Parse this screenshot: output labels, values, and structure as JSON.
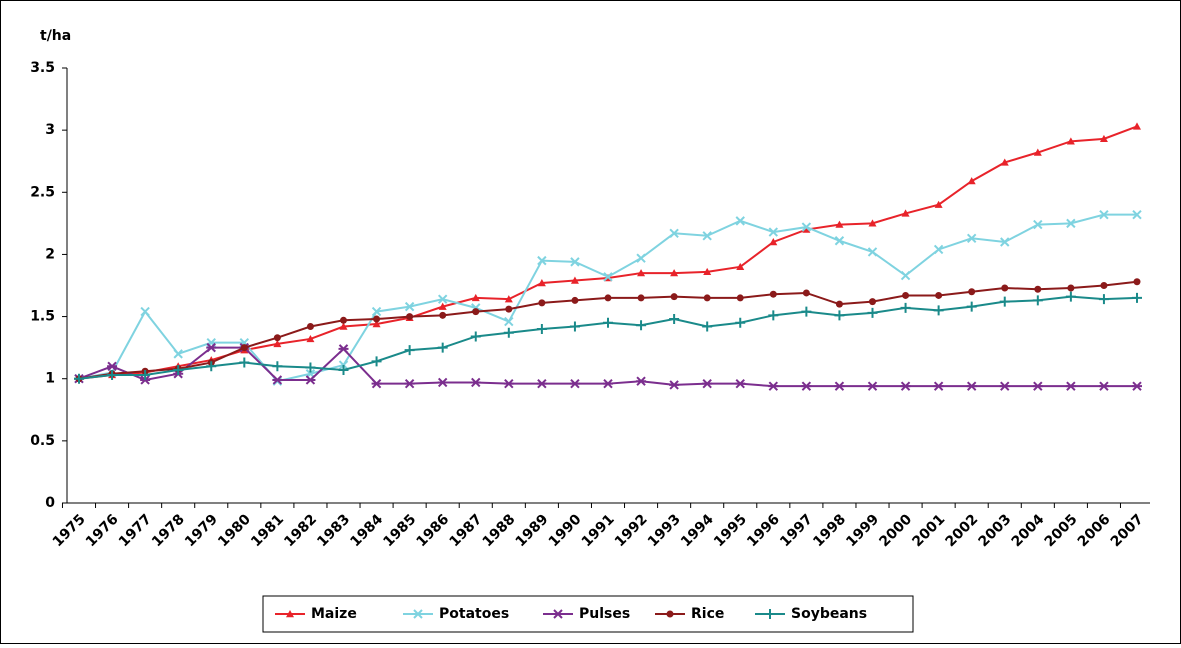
{
  "chart_data": {
    "type": "line",
    "y_label": "t/ha",
    "categories": [
      "1975",
      "1976",
      "1977",
      "1978",
      "1979",
      "1980",
      "1981",
      "1982",
      "1983",
      "1984",
      "1985",
      "1986",
      "1987",
      "1988",
      "1989",
      "1990",
      "1991",
      "1992",
      "1993",
      "1994",
      "1995",
      "1996",
      "1997",
      "1998",
      "1999",
      "2000",
      "2001",
      "2002",
      "2003",
      "2004",
      "2005",
      "2006",
      "2007"
    ],
    "series": [
      {
        "name": "Maize",
        "color": "#e8232a",
        "marker": "triangle",
        "values": [
          1.0,
          1.03,
          1.05,
          1.1,
          1.15,
          1.23,
          1.28,
          1.32,
          1.42,
          1.44,
          1.49,
          1.58,
          1.65,
          1.64,
          1.77,
          1.79,
          1.81,
          1.85,
          1.85,
          1.86,
          1.9,
          2.1,
          2.2,
          2.24,
          2.25,
          2.33,
          2.4,
          2.59,
          2.74,
          2.82,
          2.91,
          2.93,
          3.03
        ]
      },
      {
        "name": "Potatoes",
        "color": "#7fd3e0",
        "marker": "x",
        "values": [
          1.0,
          1.05,
          1.54,
          1.2,
          1.29,
          1.29,
          0.98,
          1.04,
          1.11,
          1.54,
          1.58,
          1.64,
          1.57,
          1.46,
          1.95,
          1.94,
          1.82,
          1.97,
          2.17,
          2.15,
          2.27,
          2.18,
          2.22,
          2.11,
          2.02,
          1.83,
          2.04,
          2.13,
          2.1,
          2.24,
          2.25,
          2.32,
          2.32
        ]
      },
      {
        "name": "Pulses",
        "color": "#7b2e8e",
        "marker": "star",
        "values": [
          1.0,
          1.1,
          0.99,
          1.04,
          1.25,
          1.25,
          0.99,
          0.99,
          1.24,
          0.96,
          0.96,
          0.97,
          0.97,
          0.96,
          0.96,
          0.96,
          0.96,
          0.98,
          0.95,
          0.96,
          0.96,
          0.94,
          0.94,
          0.94,
          0.94,
          0.94,
          0.94,
          0.94,
          0.94,
          0.94,
          0.94,
          0.94,
          0.94
        ]
      },
      {
        "name": "Rice",
        "color": "#8b1a1a",
        "marker": "circle",
        "values": [
          1.0,
          1.04,
          1.06,
          1.08,
          1.13,
          1.25,
          1.33,
          1.42,
          1.47,
          1.48,
          1.5,
          1.51,
          1.54,
          1.56,
          1.61,
          1.63,
          1.65,
          1.65,
          1.66,
          1.65,
          1.65,
          1.68,
          1.69,
          1.6,
          1.62,
          1.67,
          1.67,
          1.7,
          1.73,
          1.72,
          1.73,
          1.75,
          1.78
        ]
      },
      {
        "name": "Soybeans",
        "color": "#1a8a8a",
        "marker": "plus",
        "values": [
          1.0,
          1.03,
          1.03,
          1.07,
          1.1,
          1.13,
          1.1,
          1.09,
          1.07,
          1.14,
          1.23,
          1.25,
          1.34,
          1.37,
          1.4,
          1.42,
          1.45,
          1.43,
          1.48,
          1.42,
          1.45,
          1.51,
          1.54,
          1.51,
          1.53,
          1.57,
          1.55,
          1.58,
          1.62,
          1.63,
          1.66,
          1.64,
          1.65
        ]
      }
    ],
    "ylim": [
      0,
      3.5
    ],
    "yticks": [
      0,
      0.5,
      1,
      1.5,
      2,
      2.5,
      3,
      3.5
    ],
    "grid": false,
    "legend": "bottom"
  }
}
